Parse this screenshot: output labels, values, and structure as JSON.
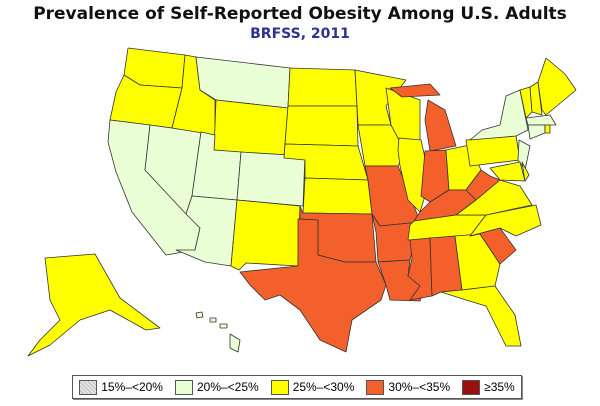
{
  "title": "Prevalence of Self-Reported Obesity Among U.S. Adults",
  "subtitle": "BRFSS, 2011",
  "legend": [
    {
      "label": "15%–<20%",
      "color": "#e4e4e4",
      "hatched": true
    },
    {
      "label": "20%–<25%",
      "color": "#eaffd6"
    },
    {
      "label": "25%–<30%",
      "color": "#ffff00"
    },
    {
      "label": "30%–<35%",
      "color": "#f4602c"
    },
    {
      "label": "≥35%",
      "color": "#9b0f0f"
    }
  ],
  "state_category": {
    "WA": 2,
    "OR": 2,
    "CA": 1,
    "NV": 1,
    "ID": 2,
    "MT": 1,
    "WY": 2,
    "UT": 1,
    "CO": 1,
    "AZ": 1,
    "NM": 2,
    "ND": 2,
    "SD": 2,
    "NE": 2,
    "KS": 2,
    "OK": 3,
    "TX": 3,
    "MN": 2,
    "IA": 2,
    "MO": 3,
    "AR": 3,
    "LA": 3,
    "WI": 2,
    "IL": 2,
    "MI": 3,
    "IN": 3,
    "OH": 2,
    "KY": 3,
    "TN": 2,
    "MS": 3,
    "AL": 3,
    "GA": 2,
    "FL": 2,
    "SC": 3,
    "NC": 2,
    "VA": 2,
    "WV": 3,
    "PA": 2,
    "NY": 1,
    "NJ": 1,
    "MD": 2,
    "DE": 2,
    "VT": 2,
    "NH": 2,
    "ME": 2,
    "MA": 1,
    "CT": 1,
    "RI": 2,
    "AK": 2,
    "HI": 1
  }
}
